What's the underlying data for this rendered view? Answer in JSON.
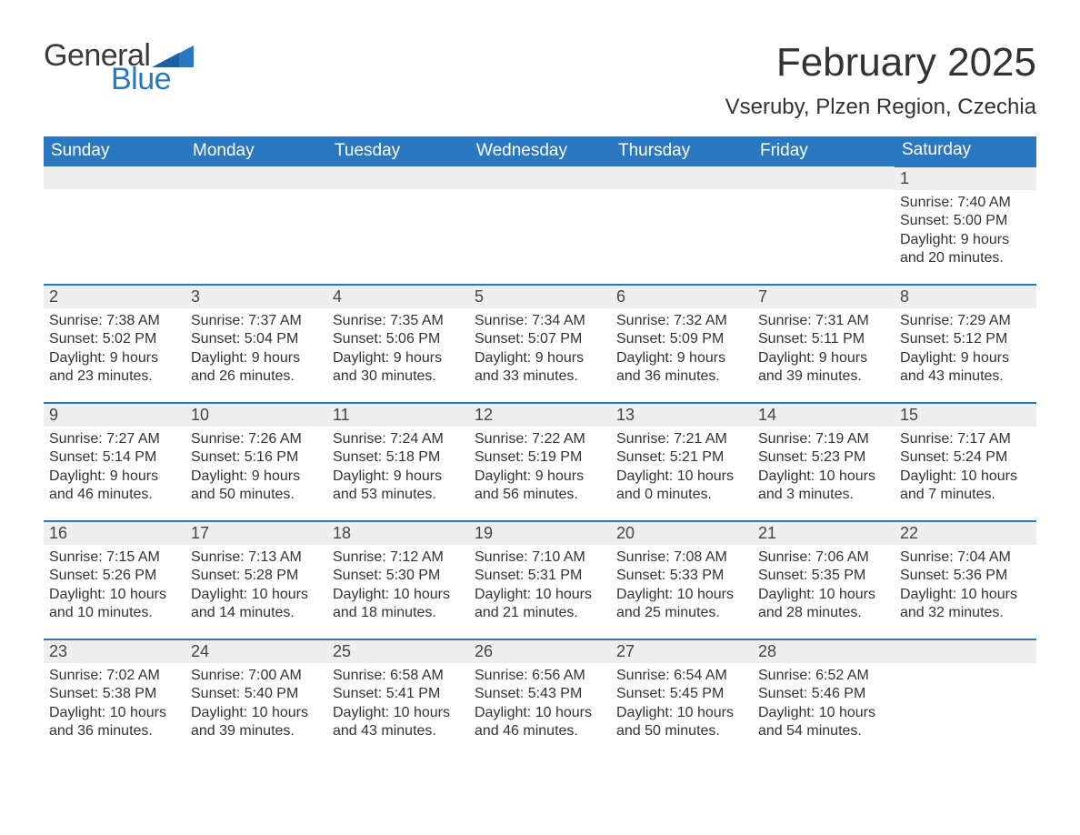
{
  "brand": {
    "general": "General",
    "blue": "Blue"
  },
  "title": "February 2025",
  "location": "Vseruby, Plzen Region, Czechia",
  "colors": {
    "header_bg": "#2b78c2",
    "header_text": "#ffffff",
    "daynum_bg": "#eeeeee",
    "cell_border": "#2b78c2",
    "body_text": "#333333",
    "logo_blue": "#2b78c2",
    "logo_gray": "#3a3a3a",
    "page_bg": "#ffffff"
  },
  "typography": {
    "title_fontsize": 44,
    "location_fontsize": 24,
    "header_fontsize": 19,
    "daynum_fontsize": 18,
    "body_fontsize": 16
  },
  "weekdays": [
    "Sunday",
    "Monday",
    "Tuesday",
    "Wednesday",
    "Thursday",
    "Friday",
    "Saturday"
  ],
  "leading_blanks": 6,
  "labels": {
    "sunrise": "Sunrise: ",
    "sunset": "Sunset: ",
    "daylight": "Daylight: "
  },
  "days": [
    {
      "n": 1,
      "sunrise": "7:40 AM",
      "sunset": "5:00 PM",
      "daylight": "9 hours and 20 minutes."
    },
    {
      "n": 2,
      "sunrise": "7:38 AM",
      "sunset": "5:02 PM",
      "daylight": "9 hours and 23 minutes."
    },
    {
      "n": 3,
      "sunrise": "7:37 AM",
      "sunset": "5:04 PM",
      "daylight": "9 hours and 26 minutes."
    },
    {
      "n": 4,
      "sunrise": "7:35 AM",
      "sunset": "5:06 PM",
      "daylight": "9 hours and 30 minutes."
    },
    {
      "n": 5,
      "sunrise": "7:34 AM",
      "sunset": "5:07 PM",
      "daylight": "9 hours and 33 minutes."
    },
    {
      "n": 6,
      "sunrise": "7:32 AM",
      "sunset": "5:09 PM",
      "daylight": "9 hours and 36 minutes."
    },
    {
      "n": 7,
      "sunrise": "7:31 AM",
      "sunset": "5:11 PM",
      "daylight": "9 hours and 39 minutes."
    },
    {
      "n": 8,
      "sunrise": "7:29 AM",
      "sunset": "5:12 PM",
      "daylight": "9 hours and 43 minutes."
    },
    {
      "n": 9,
      "sunrise": "7:27 AM",
      "sunset": "5:14 PM",
      "daylight": "9 hours and 46 minutes."
    },
    {
      "n": 10,
      "sunrise": "7:26 AM",
      "sunset": "5:16 PM",
      "daylight": "9 hours and 50 minutes."
    },
    {
      "n": 11,
      "sunrise": "7:24 AM",
      "sunset": "5:18 PM",
      "daylight": "9 hours and 53 minutes."
    },
    {
      "n": 12,
      "sunrise": "7:22 AM",
      "sunset": "5:19 PM",
      "daylight": "9 hours and 56 minutes."
    },
    {
      "n": 13,
      "sunrise": "7:21 AM",
      "sunset": "5:21 PM",
      "daylight": "10 hours and 0 minutes."
    },
    {
      "n": 14,
      "sunrise": "7:19 AM",
      "sunset": "5:23 PM",
      "daylight": "10 hours and 3 minutes."
    },
    {
      "n": 15,
      "sunrise": "7:17 AM",
      "sunset": "5:24 PM",
      "daylight": "10 hours and 7 minutes."
    },
    {
      "n": 16,
      "sunrise": "7:15 AM",
      "sunset": "5:26 PM",
      "daylight": "10 hours and 10 minutes."
    },
    {
      "n": 17,
      "sunrise": "7:13 AM",
      "sunset": "5:28 PM",
      "daylight": "10 hours and 14 minutes."
    },
    {
      "n": 18,
      "sunrise": "7:12 AM",
      "sunset": "5:30 PM",
      "daylight": "10 hours and 18 minutes."
    },
    {
      "n": 19,
      "sunrise": "7:10 AM",
      "sunset": "5:31 PM",
      "daylight": "10 hours and 21 minutes."
    },
    {
      "n": 20,
      "sunrise": "7:08 AM",
      "sunset": "5:33 PM",
      "daylight": "10 hours and 25 minutes."
    },
    {
      "n": 21,
      "sunrise": "7:06 AM",
      "sunset": "5:35 PM",
      "daylight": "10 hours and 28 minutes."
    },
    {
      "n": 22,
      "sunrise": "7:04 AM",
      "sunset": "5:36 PM",
      "daylight": "10 hours and 32 minutes."
    },
    {
      "n": 23,
      "sunrise": "7:02 AM",
      "sunset": "5:38 PM",
      "daylight": "10 hours and 36 minutes."
    },
    {
      "n": 24,
      "sunrise": "7:00 AM",
      "sunset": "5:40 PM",
      "daylight": "10 hours and 39 minutes."
    },
    {
      "n": 25,
      "sunrise": "6:58 AM",
      "sunset": "5:41 PM",
      "daylight": "10 hours and 43 minutes."
    },
    {
      "n": 26,
      "sunrise": "6:56 AM",
      "sunset": "5:43 PM",
      "daylight": "10 hours and 46 minutes."
    },
    {
      "n": 27,
      "sunrise": "6:54 AM",
      "sunset": "5:45 PM",
      "daylight": "10 hours and 50 minutes."
    },
    {
      "n": 28,
      "sunrise": "6:52 AM",
      "sunset": "5:46 PM",
      "daylight": "10 hours and 54 minutes."
    }
  ]
}
